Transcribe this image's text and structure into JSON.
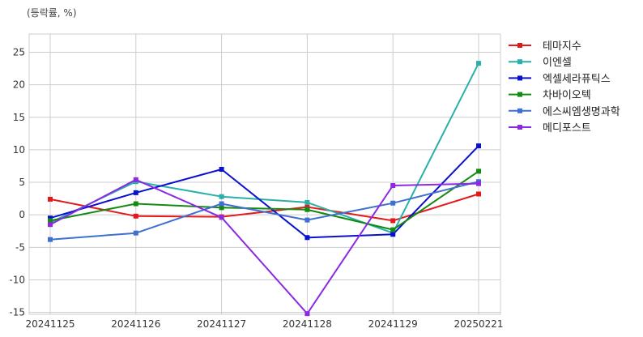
{
  "chart_data": {
    "type": "line",
    "title": "",
    "unit_label": "(등락률, %)",
    "xlabel": "",
    "ylabel": "",
    "categories": [
      "20241125",
      "20241126",
      "20241127",
      "20241128",
      "20241129",
      "20250221"
    ],
    "ylim": [
      -15.3,
      27.8
    ],
    "yticks": [
      -15,
      -10,
      -5,
      0,
      5,
      10,
      15,
      20,
      25
    ],
    "grid": true,
    "legend_position": "right",
    "series": [
      {
        "name": "테마지수",
        "color": "#e31a1c",
        "values": [
          2.4,
          -0.2,
          -0.3,
          1.2,
          -0.9,
          3.2
        ]
      },
      {
        "name": "이엔셀",
        "color": "#2ab0aa",
        "values": [
          -1.2,
          5.1,
          2.8,
          1.9,
          -2.8,
          23.3
        ]
      },
      {
        "name": "엑셀세라퓨틱스",
        "color": "#0a10d0",
        "values": [
          -0.5,
          3.4,
          7.0,
          -3.5,
          -3.0,
          10.6
        ]
      },
      {
        "name": "차바이오텍",
        "color": "#138a13",
        "values": [
          -0.9,
          1.7,
          1.1,
          0.8,
          -2.3,
          6.7
        ]
      },
      {
        "name": "에스씨엠생명과학",
        "color": "#3f6fd0",
        "values": [
          -3.8,
          -2.8,
          1.7,
          -0.8,
          1.8,
          5.1
        ]
      },
      {
        "name": "메디포스트",
        "color": "#8a2be2",
        "values": [
          -1.5,
          5.4,
          -0.4,
          -15.2,
          4.5,
          4.8
        ]
      }
    ]
  }
}
